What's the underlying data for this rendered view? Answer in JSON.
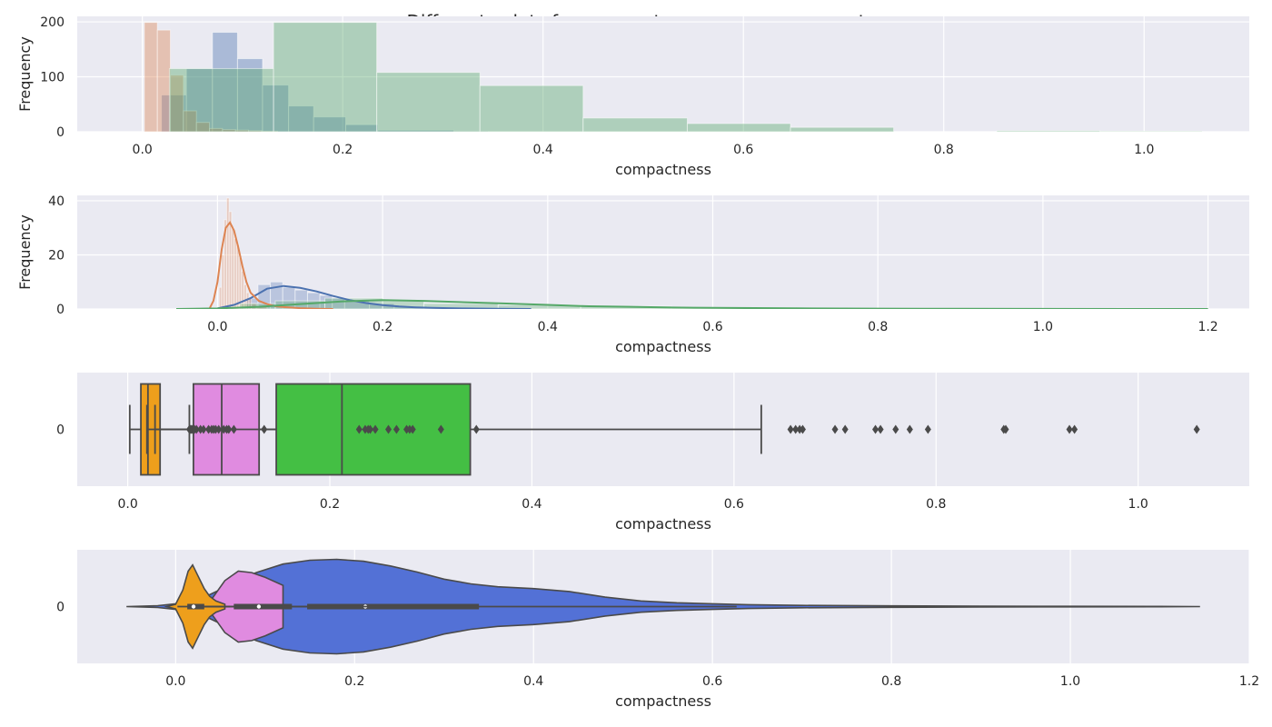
{
  "chart_data": {
    "title": "Differents plots for compactness : mean, se, worst",
    "panels": [
      {
        "type": "histogram",
        "xlabel": "compactness",
        "ylabel": "Frequency",
        "xlim": [
          -0.065,
          1.105
        ],
        "ylim": [
          0,
          210
        ],
        "xticks": [
          "0.0",
          "0.2",
          "0.4",
          "0.6",
          "0.8",
          "1.0"
        ],
        "yticks": [
          "0",
          "100",
          "200"
        ],
        "grid": true,
        "series": [
          {
            "color": "#4c72b0",
            "alpha": 0.4,
            "bins": [
              [
                0.019,
                0.044,
                67
              ],
              [
                0.044,
                0.07,
                115
              ],
              [
                0.07,
                0.095,
                181
              ],
              [
                0.095,
                0.12,
                133
              ],
              [
                0.12,
                0.146,
                85
              ],
              [
                0.146,
                0.171,
                47
              ],
              [
                0.171,
                0.203,
                27
              ],
              [
                0.203,
                0.235,
                13
              ],
              [
                0.235,
                0.311,
                3
              ],
              [
                0.311,
                0.345,
                1
              ]
            ]
          },
          {
            "color": "#dd8452",
            "alpha": 0.4,
            "bins": [
              [
                0.002,
                0.015,
                199
              ],
              [
                0.015,
                0.028,
                185
              ],
              [
                0.028,
                0.041,
                103
              ],
              [
                0.041,
                0.054,
                38
              ],
              [
                0.054,
                0.067,
                17
              ],
              [
                0.067,
                0.08,
                6
              ],
              [
                0.08,
                0.093,
                4
              ],
              [
                0.093,
                0.106,
                3
              ],
              [
                0.106,
                0.119,
                2
              ],
              [
                0.119,
                0.135,
                1
              ]
            ]
          },
          {
            "color": "#55a868",
            "alpha": 0.4,
            "bins": [
              [
                0.027,
                0.131,
                115
              ],
              [
                0.131,
                0.234,
                199
              ],
              [
                0.234,
                0.337,
                108
              ],
              [
                0.337,
                0.44,
                84
              ],
              [
                0.44,
                0.544,
                25
              ],
              [
                0.544,
                0.647,
                15
              ],
              [
                0.647,
                0.75,
                8
              ],
              [
                0.75,
                0.853,
                0
              ],
              [
                0.853,
                0.956,
                2
              ],
              [
                0.956,
                1.058,
                1
              ]
            ]
          }
        ]
      },
      {
        "type": "histogram+kde",
        "xlabel": "compactness",
        "ylabel": "Frequency",
        "xlim": [
          -0.17,
          1.25
        ],
        "ylim": [
          0,
          42
        ],
        "xticks": [
          "0.0",
          "0.2",
          "0.4",
          "0.6",
          "0.8",
          "1.0",
          "1.2"
        ],
        "yticks": [
          "0",
          "20",
          "40"
        ],
        "grid": true,
        "series": [
          {
            "color": "#4c72b0",
            "alpha": 0.3,
            "bins": [
              [
                0.019,
                0.034,
                1
              ],
              [
                0.034,
                0.049,
                4
              ],
              [
                0.049,
                0.064,
                9
              ],
              [
                0.064,
                0.079,
                10
              ],
              [
                0.079,
                0.094,
                8
              ],
              [
                0.094,
                0.109,
                7
              ],
              [
                0.109,
                0.124,
                6
              ],
              [
                0.124,
                0.139,
                5
              ],
              [
                0.139,
                0.154,
                4
              ],
              [
                0.154,
                0.184,
                3
              ],
              [
                0.184,
                0.214,
                2
              ],
              [
                0.214,
                0.254,
                1
              ],
              [
                0.254,
                0.345,
                0.5
              ]
            ],
            "kde": {
              "x": [
                -0.02,
                0.0,
                0.02,
                0.04,
                0.06,
                0.08,
                0.1,
                0.12,
                0.14,
                0.16,
                0.18,
                0.2,
                0.22,
                0.24,
                0.26,
                0.28,
                0.3,
                0.34,
                0.38
              ],
              "y": [
                0,
                0.2,
                1.5,
                4,
                7.5,
                8.5,
                7.8,
                6.5,
                4.8,
                3.3,
                2.2,
                1.4,
                0.9,
                0.6,
                0.4,
                0.3,
                0.2,
                0.1,
                0
              ]
            }
          },
          {
            "color": "#dd8452",
            "alpha": 0.3,
            "bins": [
              [
                0.002,
                0.005,
                8
              ],
              [
                0.005,
                0.008,
                20
              ],
              [
                0.008,
                0.011,
                33
              ],
              [
                0.011,
                0.014,
                41
              ],
              [
                0.014,
                0.017,
                36
              ],
              [
                0.017,
                0.02,
                30
              ],
              [
                0.02,
                0.023,
                26
              ],
              [
                0.023,
                0.026,
                24
              ],
              [
                0.026,
                0.029,
                19
              ],
              [
                0.029,
                0.032,
                14
              ],
              [
                0.032,
                0.035,
                9
              ],
              [
                0.035,
                0.038,
                6
              ],
              [
                0.038,
                0.041,
                4
              ],
              [
                0.041,
                0.047,
                2
              ],
              [
                0.047,
                0.06,
                1
              ]
            ],
            "kde": {
              "x": [
                -0.01,
                -0.005,
                0.0,
                0.005,
                0.01,
                0.015,
                0.02,
                0.025,
                0.03,
                0.035,
                0.04,
                0.05,
                0.06,
                0.07,
                0.08,
                0.1,
                0.12,
                0.14
              ],
              "y": [
                0,
                3,
                10,
                22,
                30,
                32,
                29,
                23,
                16,
                10,
                6,
                3,
                1.8,
                1.0,
                0.7,
                0.3,
                0.1,
                0
              ]
            }
          },
          {
            "color": "#55a868",
            "alpha": 0.3,
            "bins": [
              [
                0.027,
                0.07,
                2
              ],
              [
                0.07,
                0.13,
                3
              ],
              [
                0.13,
                0.2,
                4
              ],
              [
                0.2,
                0.25,
                3
              ],
              [
                0.25,
                0.34,
                2
              ],
              [
                0.34,
                0.44,
                1.5
              ],
              [
                0.44,
                0.55,
                1
              ],
              [
                0.55,
                0.7,
                0.5
              ],
              [
                0.7,
                1.06,
                0.2
              ]
            ],
            "kde": {
              "x": [
                -0.05,
                0.0,
                0.05,
                0.1,
                0.15,
                0.2,
                0.25,
                0.3,
                0.35,
                0.4,
                0.45,
                0.5,
                0.55,
                0.6,
                0.7,
                0.8,
                0.9,
                1.0,
                1.1,
                1.2
              ],
              "y": [
                0,
                0.2,
                0.8,
                1.8,
                2.8,
                3.3,
                3.0,
                2.5,
                2.0,
                1.5,
                1.0,
                0.8,
                0.55,
                0.4,
                0.22,
                0.12,
                0.06,
                0.03,
                0.01,
                0
              ]
            }
          }
        ]
      },
      {
        "type": "boxplot",
        "xlabel": "compactness",
        "ytick": "0",
        "xlim": [
          -0.05,
          1.11
        ],
        "xticks": [
          "0.0",
          "0.2",
          "0.4",
          "0.6",
          "0.8",
          "1.0"
        ],
        "grid": true,
        "boxes": [
          {
            "color": "#ee9f1c",
            "q1": 0.013,
            "median": 0.02,
            "q3": 0.032,
            "whislo": 0.002,
            "whishi": 0.061,
            "fliers": []
          },
          {
            "color": "#e08be0",
            "q1": 0.065,
            "median": 0.093,
            "q3": 0.13,
            "whislo": 0.019,
            "whishi": 0.228,
            "fliers": [
              0.061,
              0.062,
              0.063,
              0.064,
              0.066,
              0.068,
              0.072,
              0.075,
              0.08,
              0.083,
              0.085,
              0.087,
              0.09,
              0.095,
              0.098,
              0.1,
              0.105,
              0.135
            ]
          },
          {
            "color": "#44bf44",
            "q1": 0.147,
            "median": 0.212,
            "q3": 0.339,
            "whislo": 0.027,
            "whishi": 0.627,
            "fliers": [
              0.229,
              0.235,
              0.238,
              0.24,
              0.245,
              0.258,
              0.266,
              0.276,
              0.279,
              0.282,
              0.31,
              0.345,
              0.656,
              0.661,
              0.665,
              0.668,
              0.7,
              0.71,
              0.74,
              0.745,
              0.76,
              0.774,
              0.792,
              0.867,
              0.869,
              0.932,
              0.937,
              1.058
            ]
          }
        ]
      },
      {
        "type": "violin",
        "xlabel": "compactness",
        "ytick": "0",
        "xlim": [
          -0.11,
          1.2
        ],
        "xticks": [
          "0.0",
          "0.2",
          "0.4",
          "0.6",
          "0.8",
          "1.0",
          "1.2"
        ],
        "grid": true,
        "violins": [
          {
            "color": "#5371d6",
            "profile": [
              [
                -0.055,
                0
              ],
              [
                -0.02,
                0.02
              ],
              [
                0.0,
                0.06
              ],
              [
                0.03,
                0.18
              ],
              [
                0.06,
                0.45
              ],
              [
                0.09,
                0.72
              ],
              [
                0.12,
                0.9
              ],
              [
                0.15,
                0.98
              ],
              [
                0.18,
                1.0
              ],
              [
                0.21,
                0.96
              ],
              [
                0.24,
                0.86
              ],
              [
                0.27,
                0.73
              ],
              [
                0.3,
                0.58
              ],
              [
                0.33,
                0.48
              ],
              [
                0.36,
                0.42
              ],
              [
                0.4,
                0.38
              ],
              [
                0.44,
                0.32
              ],
              [
                0.48,
                0.2
              ],
              [
                0.52,
                0.12
              ],
              [
                0.56,
                0.08
              ],
              [
                0.6,
                0.06
              ],
              [
                0.64,
                0.04
              ],
              [
                0.7,
                0.025
              ],
              [
                0.8,
                0.015
              ],
              [
                0.9,
                0.01
              ],
              [
                1.0,
                0.006
              ],
              [
                1.1,
                0.003
              ],
              [
                1.145,
                0
              ]
            ],
            "q1": 0.147,
            "median": 0.212,
            "q3": 0.339,
            "whislo": 0.027,
            "whishi": 0.627
          },
          {
            "color": "#e08be0",
            "profile": [
              [
                0.03,
                0
              ],
              [
                0.04,
                0.15
              ],
              [
                0.055,
                0.55
              ],
              [
                0.07,
                0.75
              ],
              [
                0.085,
                0.72
              ],
              [
                0.1,
                0.62
              ],
              [
                0.12,
                0.45
              ]
            ],
            "q1": 0.065,
            "median": 0.093,
            "q3": 0.13,
            "whislo": 0.019,
            "whishi": 0.228
          },
          {
            "color": "#ee9f1c",
            "profile": [
              [
                -0.01,
                0
              ],
              [
                0.0,
                0.05
              ],
              [
                0.008,
                0.35
              ],
              [
                0.014,
                0.75
              ],
              [
                0.019,
                0.88
              ],
              [
                0.025,
                0.65
              ],
              [
                0.032,
                0.38
              ],
              [
                0.038,
                0.22
              ],
              [
                0.045,
                0.12
              ],
              [
                0.055,
                0.05
              ]
            ],
            "q1": 0.013,
            "median": 0.02,
            "q3": 0.032,
            "whislo": 0.002,
            "whishi": 0.061
          }
        ]
      }
    ]
  }
}
